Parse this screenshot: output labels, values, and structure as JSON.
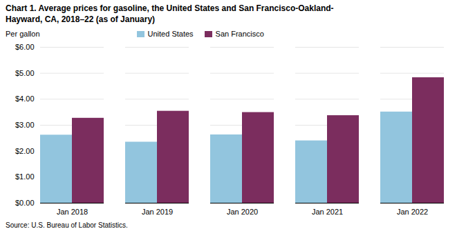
{
  "chart_data": {
    "type": "bar",
    "title": "Chart 1. Average prices for gasoline, the United States and San Francisco-Oakland-\nHayward, CA, 2018–22 (as of January)",
    "y_label": "Per gallon",
    "annotations": [
      "Source: U.S. Bureau of Labor Statistics."
    ],
    "categories": [
      "Jan 2018",
      "Jan 2019",
      "Jan 2020",
      "Jan 2021",
      "Jan 2022"
    ],
    "series": [
      {
        "name": "United States",
        "color": "#92C5DE",
        "values": [
          2.62,
          2.35,
          2.63,
          2.4,
          3.51
        ]
      },
      {
        "name": "San Francisco",
        "color": "#7B2D5E",
        "values": [
          3.27,
          3.54,
          3.49,
          3.37,
          4.83
        ]
      }
    ],
    "ylim": [
      0,
      6.0
    ],
    "yticks": [
      {
        "value": 0.0,
        "label": "$0.00"
      },
      {
        "value": 1.0,
        "label": "$1.00"
      },
      {
        "value": 2.0,
        "label": "$2.00"
      },
      {
        "value": 3.0,
        "label": "$3.00"
      },
      {
        "value": 4.0,
        "label": "$4.00"
      },
      {
        "value": 5.0,
        "label": "$5.00"
      },
      {
        "value": 6.0,
        "label": "$6.00"
      }
    ],
    "grid": true,
    "legend": "top"
  }
}
